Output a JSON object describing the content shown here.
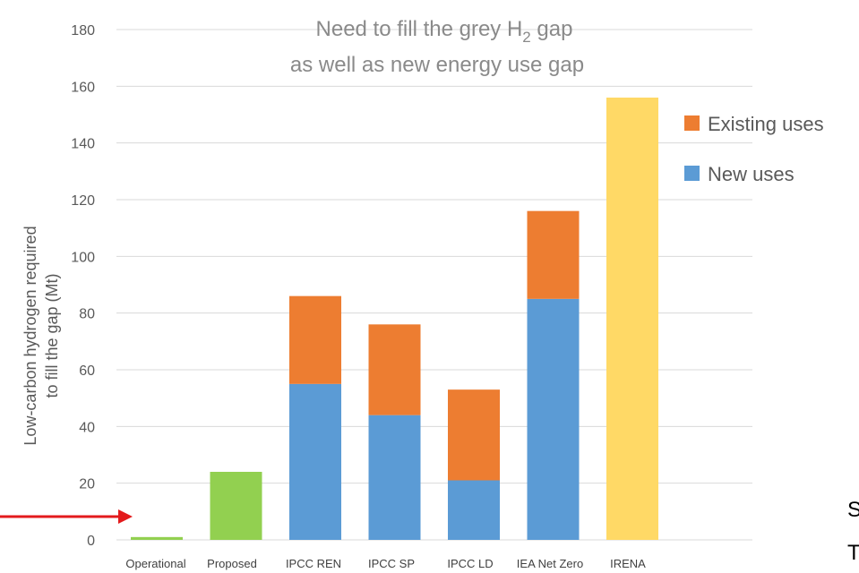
{
  "chart_data": {
    "type": "bar",
    "stacked": true,
    "title_line1_prefix": "Need to fill the grey H",
    "title_line1_subscript": "2",
    "title_line1_suffix": " gap",
    "title_line2": "as well as new energy use gap",
    "ylabel_line1": "Low-carbon hydrogen required",
    "ylabel_line2": "to fill the gap (Mt)",
    "ylim": [
      0,
      180
    ],
    "yticks": [
      0,
      20,
      40,
      60,
      80,
      100,
      120,
      140,
      160,
      180
    ],
    "grid": true,
    "legend_position": "right",
    "categories": [
      "Operational",
      "Proposed",
      "IPCC REN",
      "IPCC SP",
      "IPCC LD",
      "IEA Net Zero",
      "IRENA"
    ],
    "series": [
      {
        "name": "New uses",
        "color": "#5b9bd5",
        "values": [
          0,
          0,
          55,
          44,
          21,
          85,
          0
        ]
      },
      {
        "name": "Existing uses",
        "color": "#ed7d31",
        "values": [
          0,
          0,
          31,
          32,
          32,
          31,
          0
        ]
      },
      {
        "name": "",
        "color": "#92d050",
        "values": [
          1,
          24,
          0,
          0,
          0,
          0,
          0
        ]
      },
      {
        "name": "",
        "color": "#ffd966",
        "values": [
          0,
          0,
          0,
          0,
          0,
          0,
          156
        ]
      }
    ],
    "legend": [
      {
        "name": "Existing uses",
        "color": "#ed7d31"
      },
      {
        "name": "New uses",
        "color": "#5b9bd5"
      }
    ],
    "annotation_arrow": {
      "color": "#e31a1c",
      "points_to": "Operational"
    },
    "side_text": [
      "S",
      "T"
    ]
  }
}
